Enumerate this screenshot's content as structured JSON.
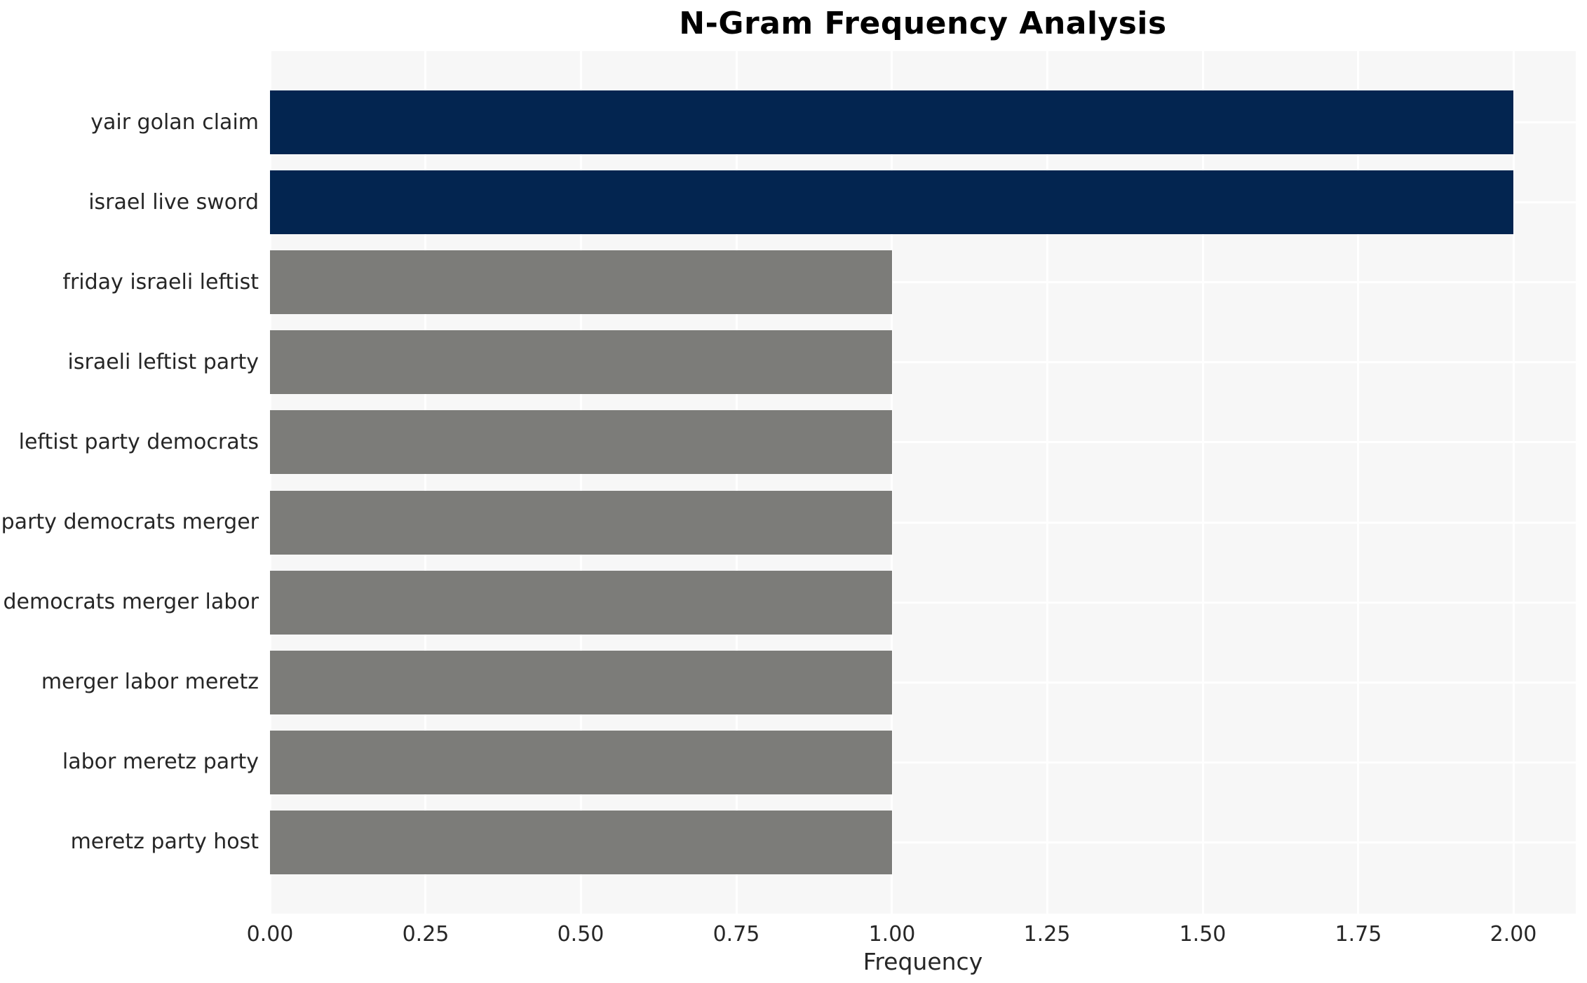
{
  "chart_data": {
    "type": "bar",
    "orientation": "horizontal",
    "title": "N-Gram Frequency Analysis",
    "categories": [
      "yair golan claim",
      "israel live sword",
      "friday israeli leftist",
      "israeli leftist party",
      "leftist party democrats",
      "party democrats merger",
      "democrats merger labor",
      "merger labor meretz",
      "labor meretz party",
      "meretz party host"
    ],
    "values": [
      2,
      2,
      1,
      1,
      1,
      1,
      1,
      1,
      1,
      1
    ],
    "bar_colors": [
      "#032550",
      "#032550",
      "#7c7c79",
      "#7c7c79",
      "#7c7c79",
      "#7c7c79",
      "#7c7c79",
      "#7c7c79",
      "#7c7c79",
      "#7c7c79"
    ],
    "xlabel": "Frequency",
    "ylabel": "",
    "xlim": [
      0,
      2.1
    ],
    "xticks": [
      0,
      0.25,
      0.5,
      0.75,
      1,
      1.25,
      1.5,
      1.75,
      2
    ],
    "xtick_labels": [
      "0.00",
      "0.25",
      "0.50",
      "0.75",
      "1.00",
      "1.25",
      "1.50",
      "1.75",
      "2.00"
    ],
    "grid": true,
    "legend": false
  },
  "colors": {
    "bar_highlight": "#032550",
    "bar_default": "#7c7c79",
    "plot_background": "#f7f7f7",
    "gridline": "#ffffff",
    "tick_text": "#262626",
    "title_text": "#000000"
  }
}
